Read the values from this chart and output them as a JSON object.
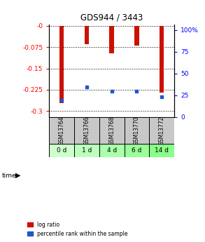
{
  "title": "GDS944 / 3443",
  "samples": [
    "GSM13764",
    "GSM13766",
    "GSM13768",
    "GSM13770",
    "GSM13772"
  ],
  "time_labels": [
    "0 d",
    "1 d",
    "4 d",
    "6 d",
    "14 d"
  ],
  "log_ratio": [
    -0.272,
    -0.065,
    -0.098,
    -0.07,
    -0.235
  ],
  "percentile_rank": [
    0.18,
    0.32,
    0.28,
    0.28,
    0.22
  ],
  "ylim_left": [
    -0.32,
    0.005
  ],
  "ylim_right": [
    0,
    106.67
  ],
  "yticks_left": [
    -0.3,
    -0.225,
    -0.15,
    -0.075,
    0.0
  ],
  "ytick_labels_left": [
    "-0.3",
    "-0.225",
    "-0.15",
    "-0.075",
    "-0"
  ],
  "yticks_right": [
    0,
    25,
    50,
    75,
    100
  ],
  "ytick_labels_right": [
    "0",
    "25",
    "50",
    "75",
    "100%"
  ],
  "bar_color": "#cc1100",
  "marker_color": "#2255cc",
  "bg_sample_color": "#c8c8c8",
  "bg_time_colors": [
    "#ccffcc",
    "#bbffbb",
    "#aaffaa",
    "#99ff99",
    "#88ff88"
  ],
  "legend_red_label": "log ratio",
  "legend_blue_label": "percentile rank within the sample",
  "bar_width": 0.18
}
